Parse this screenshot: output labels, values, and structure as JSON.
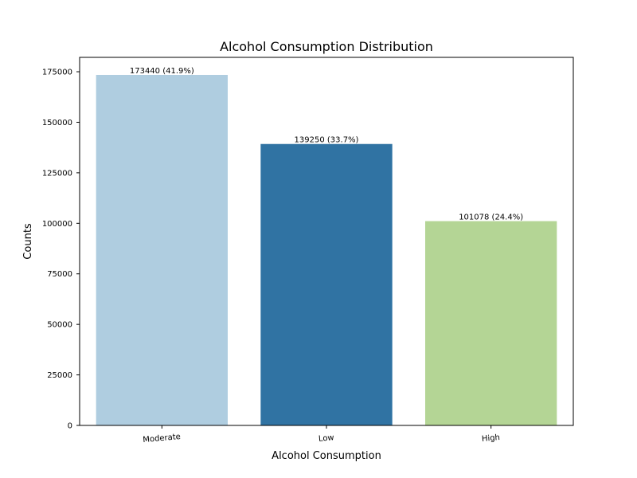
{
  "chart_data": {
    "type": "bar",
    "title": "Alcohol Consumption Distribution",
    "xlabel": "Alcohol Consumption",
    "ylabel": "Counts",
    "categories": [
      "Moderate",
      "Low",
      "High"
    ],
    "values": [
      173440,
      139250,
      101078
    ],
    "data_labels": [
      "173440 (41.9%)",
      "139250 (33.7%)",
      "101078 (24.4%)"
    ],
    "colors": [
      "#afcde0",
      "#3073a3",
      "#b4d595"
    ],
    "yticks": [
      0,
      25000,
      50000,
      75000,
      100000,
      125000,
      150000,
      175000
    ],
    "ytick_labels": [
      "0",
      "25000",
      "50000",
      "75000",
      "100000",
      "125000",
      "150000",
      "175000"
    ],
    "ylim": [
      0,
      182112
    ],
    "grid": false,
    "legend": "none"
  }
}
